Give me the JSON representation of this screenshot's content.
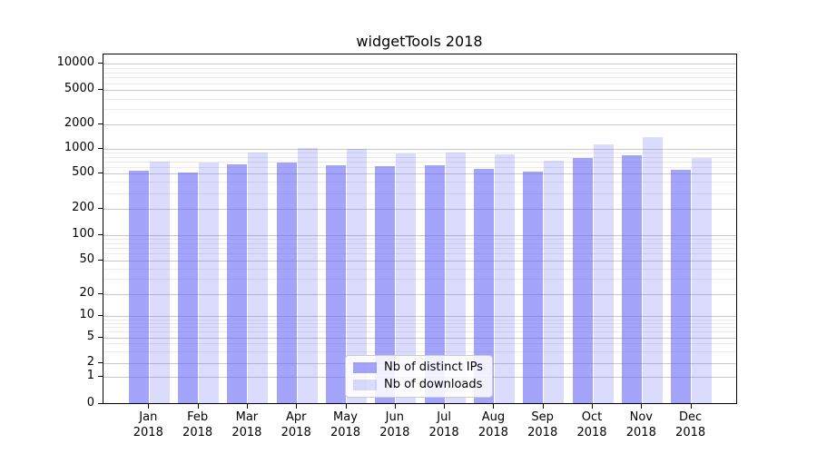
{
  "title": "widgetTools 2018",
  "colors": {
    "series_ips": "rgba(90,90,245,0.55)",
    "series_downloads": "rgba(90,90,245,0.22)",
    "major_grid": "#c9c9c9",
    "minor_grid": "#ebebeb",
    "spine": "#000000"
  },
  "legend": {
    "position": "lower center",
    "items": [
      {
        "label": "Nb of distinct IPs"
      },
      {
        "label": "Nb of downloads"
      }
    ]
  },
  "chart_data": {
    "type": "bar",
    "title": "widgetTools 2018",
    "categories": [
      "Jan",
      "Feb",
      "Mar",
      "Apr",
      "May",
      "Jun",
      "Jul",
      "Aug",
      "Sep",
      "Oct",
      "Nov",
      "Dec"
    ],
    "category_year": "2018",
    "series": [
      {
        "name": "Nb of distinct IPs",
        "values": [
          530,
          510,
          640,
          680,
          630,
          605,
          625,
          560,
          520,
          770,
          840,
          550
        ]
      },
      {
        "name": "Nb of downloads",
        "values": [
          700,
          670,
          890,
          1020,
          1000,
          870,
          890,
          860,
          720,
          1120,
          1370,
          760
        ]
      }
    ],
    "xlabel": "",
    "ylabel": "",
    "yscale": "symlog",
    "ytick_values": [
      0,
      1,
      2,
      5,
      10,
      20,
      50,
      100,
      200,
      500,
      1000,
      2000,
      5000,
      10000
    ],
    "ylim": [
      0,
      13000
    ],
    "grid": "on",
    "legend_position": "lower center"
  }
}
